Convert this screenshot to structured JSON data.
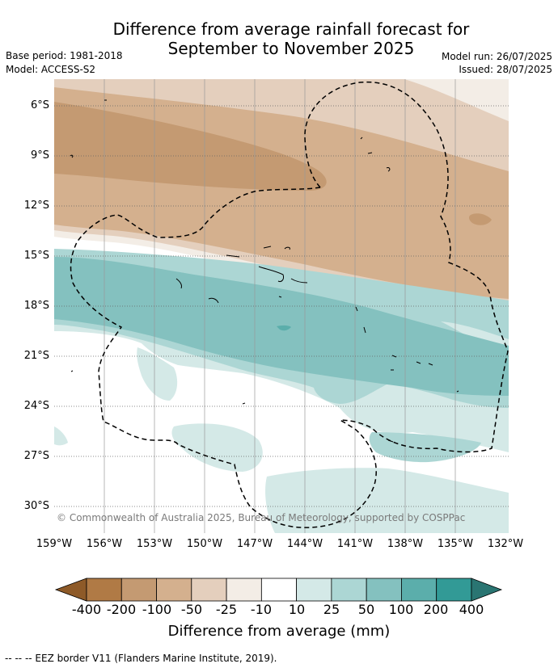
{
  "title_line1": "Difference from average rainfall forecast for",
  "title_line2": "September to November 2025",
  "base_period": "Base period: 1981-2018",
  "model": "Model: ACCESS-S2",
  "model_run": "Model run: 26/07/2025",
  "issued": "Issued: 28/07/2025",
  "copyright": "© Commonwealth of Australia 2025, Bureau of Meteorology, supported by COSPPac",
  "x_ticks": [
    "159°W",
    "156°W",
    "153°W",
    "150°W",
    "147°W",
    "144°W",
    "141°W",
    "138°W",
    "135°W",
    "132°W"
  ],
  "y_ticks": [
    "6°S",
    "9°S",
    "12°S",
    "15°S",
    "18°S",
    "21°S",
    "24°S",
    "27°S",
    "30°S"
  ],
  "colorbar": {
    "labels": [
      "-400",
      "-200",
      "-100",
      "-50",
      "-25",
      "-10",
      "10",
      "25",
      "50",
      "100",
      "200",
      "400"
    ],
    "colors": [
      "#8e5a28",
      "#b07a45",
      "#c49a72",
      "#d4b08e",
      "#e4cfbd",
      "#f3ede6",
      "#ffffff",
      "#d4e9e7",
      "#acd6d4",
      "#84c1bf",
      "#5baeab",
      "#329a96",
      "#2a7572"
    ],
    "title": "Difference from average (mm)"
  },
  "legend_note": "--  --  -- EEZ border V11 (Flanders Marine Institute, 2019)."
}
